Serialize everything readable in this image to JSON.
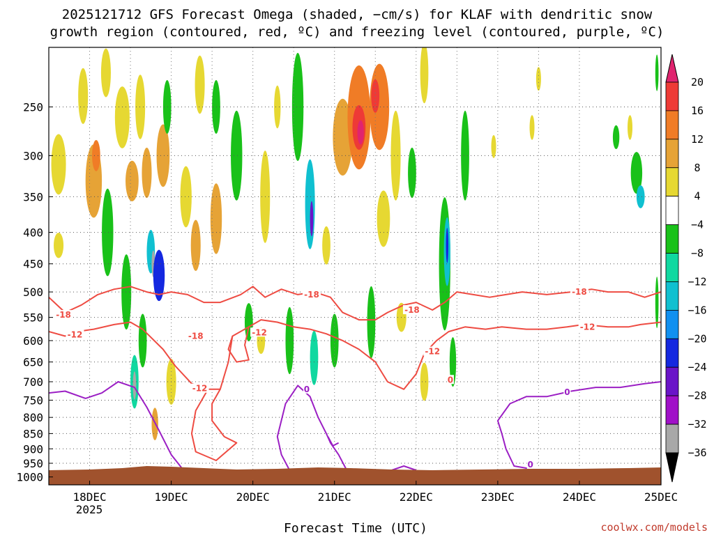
{
  "chart_data": {
    "type": "heatmap",
    "title_line1": "2025121712 GFS Forecast Omega (shaded, −cm/s) for KLAF with dendritic snow",
    "title_line2": "growth region (contoured, red, ºC) and freezing level (contoured, purple, ºC)",
    "xlabel": "Forecast Time (UTC)",
    "credit": "coolwx.com/models",
    "year_label": "2025",
    "x_ticks": [
      {
        "day": 18,
        "label": "18DEC"
      },
      {
        "day": 19,
        "label": "19DEC"
      },
      {
        "day": 20,
        "label": "20DEC"
      },
      {
        "day": 21,
        "label": "21DEC"
      },
      {
        "day": 22,
        "label": "22DEC"
      },
      {
        "day": 23,
        "label": "23DEC"
      },
      {
        "day": 24,
        "label": "24DEC"
      },
      {
        "day": 25,
        "label": "25DEC"
      }
    ],
    "x_range_days": [
      17.5,
      25.0
    ],
    "y_ticks_hpa": [
      250,
      300,
      350,
      400,
      450,
      500,
      550,
      600,
      650,
      700,
      750,
      800,
      850,
      900,
      950,
      1000
    ],
    "y_range_hpa": [
      200,
      1030
    ],
    "y_scale": "log-pressure",
    "surface_hpa": 975,
    "colorbar": {
      "ticks": [
        "20",
        "16",
        "12",
        "8",
        "4",
        "−4",
        "−8",
        "−12",
        "−16",
        "−20",
        "−24",
        "−28",
        "−32",
        "−36"
      ],
      "colors": [
        "#e0246f",
        "#ee3a36",
        "#f07c26",
        "#e6a336",
        "#e6d832",
        "#ffffff",
        "#19c119",
        "#10d8a0",
        "#10c0d0",
        "#1090f0",
        "#1428e0",
        "#6a14c8",
        "#a010c8",
        "#a8a8a8"
      ],
      "top_arrow_color": "#e0246f",
      "bottom_arrow_color": "#000000"
    },
    "omega_blobs": [
      {
        "d": 17.62,
        "p": 310,
        "dd": 0.09,
        "dp": 70,
        "c": 4
      },
      {
        "d": 17.62,
        "p": 420,
        "dd": 0.06,
        "dp": 40,
        "c": 4
      },
      {
        "d": 17.92,
        "p": 240,
        "dd": 0.06,
        "dp": 50,
        "c": 4
      },
      {
        "d": 18.05,
        "p": 330,
        "dd": 0.1,
        "dp": 90,
        "c": 3
      },
      {
        "d": 18.08,
        "p": 300,
        "dd": 0.05,
        "dp": 35,
        "c": 2
      },
      {
        "d": 18.2,
        "p": 220,
        "dd": 0.06,
        "dp": 40,
        "c": 4
      },
      {
        "d": 18.22,
        "p": 400,
        "dd": 0.07,
        "dp": 130,
        "c": 6
      },
      {
        "d": 18.4,
        "p": 260,
        "dd": 0.09,
        "dp": 60,
        "c": 4
      },
      {
        "d": 18.45,
        "p": 500,
        "dd": 0.06,
        "dp": 140,
        "c": 6
      },
      {
        "d": 18.52,
        "p": 330,
        "dd": 0.08,
        "dp": 50,
        "c": 3
      },
      {
        "d": 18.55,
        "p": 700,
        "dd": 0.05,
        "dp": 140,
        "c": 7
      },
      {
        "d": 18.55,
        "p": 710,
        "dd": 0.02,
        "dp": 75,
        "c": 13
      },
      {
        "d": 18.62,
        "p": 250,
        "dd": 0.06,
        "dp": 60,
        "c": 4
      },
      {
        "d": 18.65,
        "p": 600,
        "dd": 0.05,
        "dp": 120,
        "c": 6
      },
      {
        "d": 18.7,
        "p": 320,
        "dd": 0.06,
        "dp": 60,
        "c": 3
      },
      {
        "d": 18.75,
        "p": 430,
        "dd": 0.05,
        "dp": 70,
        "c": 8
      },
      {
        "d": 18.78,
        "p": 450,
        "dd": 0.02,
        "dp": 45,
        "c": 13
      },
      {
        "d": 18.85,
        "p": 470,
        "dd": 0.07,
        "dp": 90,
        "c": 10
      },
      {
        "d": 18.9,
        "p": 300,
        "dd": 0.08,
        "dp": 70,
        "c": 3
      },
      {
        "d": 18.8,
        "p": 820,
        "dd": 0.04,
        "dp": 100,
        "c": 3
      },
      {
        "d": 18.95,
        "p": 250,
        "dd": 0.05,
        "dp": 50,
        "c": 6
      },
      {
        "d": 19.0,
        "p": 700,
        "dd": 0.06,
        "dp": 120,
        "c": 4
      },
      {
        "d": 19.18,
        "p": 350,
        "dd": 0.07,
        "dp": 80,
        "c": 4
      },
      {
        "d": 19.3,
        "p": 420,
        "dd": 0.06,
        "dp": 80,
        "c": 3
      },
      {
        "d": 19.35,
        "p": 230,
        "dd": 0.06,
        "dp": 50,
        "c": 4
      },
      {
        "d": 19.55,
        "p": 380,
        "dd": 0.07,
        "dp": 100,
        "c": 3
      },
      {
        "d": 19.55,
        "p": 250,
        "dd": 0.05,
        "dp": 50,
        "c": 6
      },
      {
        "d": 19.8,
        "p": 300,
        "dd": 0.07,
        "dp": 100,
        "c": 6
      },
      {
        "d": 19.95,
        "p": 560,
        "dd": 0.05,
        "dp": 80,
        "c": 6
      },
      {
        "d": 20.15,
        "p": 350,
        "dd": 0.06,
        "dp": 120,
        "c": 4
      },
      {
        "d": 20.3,
        "p": 250,
        "dd": 0.04,
        "dp": 40,
        "c": 4
      },
      {
        "d": 20.45,
        "p": 600,
        "dd": 0.05,
        "dp": 150,
        "c": 6
      },
      {
        "d": 20.55,
        "p": 250,
        "dd": 0.07,
        "dp": 100,
        "c": 6
      },
      {
        "d": 20.7,
        "p": 360,
        "dd": 0.06,
        "dp": 120,
        "c": 8
      },
      {
        "d": 20.72,
        "p": 380,
        "dd": 0.02,
        "dp": 50,
        "c": 11
      },
      {
        "d": 20.75,
        "p": 640,
        "dd": 0.05,
        "dp": 130,
        "c": 7
      },
      {
        "d": 20.9,
        "p": 420,
        "dd": 0.05,
        "dp": 60,
        "c": 4
      },
      {
        "d": 21.0,
        "p": 600,
        "dd": 0.05,
        "dp": 120,
        "c": 6
      },
      {
        "d": 21.1,
        "p": 280,
        "dd": 0.12,
        "dp": 80,
        "c": 3
      },
      {
        "d": 21.3,
        "p": 260,
        "dd": 0.14,
        "dp": 100,
        "c": 2
      },
      {
        "d": 21.3,
        "p": 270,
        "dd": 0.08,
        "dp": 45,
        "c": 1
      },
      {
        "d": 21.32,
        "p": 275,
        "dd": 0.04,
        "dp": 25,
        "c": 0
      },
      {
        "d": 21.55,
        "p": 250,
        "dd": 0.12,
        "dp": 80,
        "c": 2
      },
      {
        "d": 21.5,
        "p": 240,
        "dd": 0.05,
        "dp": 30,
        "c": 1
      },
      {
        "d": 21.6,
        "p": 380,
        "dd": 0.08,
        "dp": 80,
        "c": 4
      },
      {
        "d": 21.45,
        "p": 560,
        "dd": 0.05,
        "dp": 150,
        "c": 6
      },
      {
        "d": 21.75,
        "p": 300,
        "dd": 0.06,
        "dp": 100,
        "c": 4
      },
      {
        "d": 21.82,
        "p": 550,
        "dd": 0.06,
        "dp": 60,
        "c": 4
      },
      {
        "d": 21.95,
        "p": 320,
        "dd": 0.05,
        "dp": 60,
        "c": 6
      },
      {
        "d": 22.1,
        "p": 220,
        "dd": 0.05,
        "dp": 50,
        "c": 4
      },
      {
        "d": 22.1,
        "p": 700,
        "dd": 0.05,
        "dp": 100,
        "c": 4
      },
      {
        "d": 22.35,
        "p": 450,
        "dd": 0.07,
        "dp": 220,
        "c": 6
      },
      {
        "d": 22.38,
        "p": 430,
        "dd": 0.04,
        "dp": 110,
        "c": 8
      },
      {
        "d": 22.38,
        "p": 420,
        "dd": 0.015,
        "dp": 55,
        "c": 10
      },
      {
        "d": 22.45,
        "p": 650,
        "dd": 0.04,
        "dp": 120,
        "c": 6
      },
      {
        "d": 22.6,
        "p": 300,
        "dd": 0.05,
        "dp": 100,
        "c": 6
      },
      {
        "d": 22.95,
        "p": 290,
        "dd": 0.03,
        "dp": 25,
        "c": 4
      },
      {
        "d": 23.5,
        "p": 225,
        "dd": 0.03,
        "dp": 20,
        "c": 4
      },
      {
        "d": 23.42,
        "p": 270,
        "dd": 0.03,
        "dp": 25,
        "c": 4
      },
      {
        "d": 24.45,
        "p": 280,
        "dd": 0.04,
        "dp": 25,
        "c": 6
      },
      {
        "d": 24.62,
        "p": 270,
        "dd": 0.03,
        "dp": 25,
        "c": 4
      },
      {
        "d": 24.7,
        "p": 320,
        "dd": 0.07,
        "dp": 50,
        "c": 6
      },
      {
        "d": 24.75,
        "p": 350,
        "dd": 0.05,
        "dp": 30,
        "c": 8
      },
      {
        "d": 24.95,
        "p": 220,
        "dd": 0.02,
        "dp": 30,
        "c": 6
      },
      {
        "d": 24.95,
        "p": 520,
        "dd": 0.02,
        "dp": 100,
        "c": 6
      },
      {
        "d": 20.1,
        "p": 600,
        "dd": 0.05,
        "dp": 60,
        "c": 4
      }
    ],
    "contours": [
      {
        "name": "dgz-minus18",
        "color": "#ee4b42",
        "width": 2,
        "points": [
          [
            17.5,
            510
          ],
          [
            17.7,
            540
          ],
          [
            17.9,
            525
          ],
          [
            18.1,
            505
          ],
          [
            18.3,
            495
          ],
          [
            18.5,
            490
          ],
          [
            18.7,
            500
          ],
          [
            18.85,
            505
          ],
          [
            19.0,
            500
          ],
          [
            19.2,
            505
          ],
          [
            19.4,
            520
          ],
          [
            19.6,
            520
          ],
          [
            19.85,
            505
          ],
          [
            20.0,
            490
          ],
          [
            20.15,
            510
          ],
          [
            20.35,
            495
          ],
          [
            20.55,
            505
          ],
          [
            20.75,
            500
          ],
          [
            20.95,
            510
          ],
          [
            21.1,
            540
          ],
          [
            21.3,
            555
          ],
          [
            21.5,
            555
          ],
          [
            21.65,
            540
          ],
          [
            21.85,
            525
          ],
          [
            22.0,
            520
          ],
          [
            22.2,
            535
          ],
          [
            22.35,
            520
          ],
          [
            22.5,
            500
          ],
          [
            22.7,
            505
          ],
          [
            22.9,
            510
          ],
          [
            23.1,
            505
          ],
          [
            23.3,
            500
          ],
          [
            23.6,
            505
          ],
          [
            23.9,
            500
          ],
          [
            24.15,
            495
          ],
          [
            24.35,
            500
          ],
          [
            24.6,
            500
          ],
          [
            24.8,
            510
          ],
          [
            25.0,
            500
          ]
        ]
      },
      {
        "name": "dgz-minus12",
        "color": "#ee4b42",
        "width": 2,
        "points": [
          [
            17.5,
            580
          ],
          [
            17.7,
            590
          ],
          [
            17.85,
            580
          ],
          [
            18.05,
            575
          ],
          [
            18.3,
            565
          ],
          [
            18.5,
            560
          ],
          [
            18.65,
            575
          ],
          [
            18.9,
            620
          ],
          [
            19.05,
            660
          ],
          [
            19.25,
            705
          ],
          [
            19.45,
            720
          ],
          [
            19.6,
            720
          ],
          [
            19.7,
            650
          ],
          [
            19.75,
            590
          ],
          [
            19.95,
            570
          ],
          [
            20.1,
            555
          ],
          [
            20.3,
            560
          ],
          [
            20.5,
            570
          ],
          [
            20.7,
            575
          ],
          [
            20.9,
            585
          ],
          [
            21.1,
            600
          ],
          [
            21.3,
            620
          ],
          [
            21.5,
            650
          ],
          [
            21.65,
            700
          ],
          [
            21.85,
            720
          ],
          [
            22.0,
            680
          ],
          [
            22.1,
            630
          ],
          [
            22.25,
            600
          ],
          [
            22.4,
            580
          ],
          [
            22.6,
            570
          ],
          [
            22.85,
            575
          ],
          [
            23.05,
            570
          ],
          [
            23.35,
            575
          ],
          [
            23.6,
            575
          ],
          [
            23.85,
            570
          ],
          [
            24.05,
            565
          ],
          [
            24.35,
            570
          ],
          [
            24.6,
            570
          ],
          [
            24.75,
            565
          ],
          [
            25.0,
            560
          ]
        ]
      },
      {
        "name": "dgz-loop-a",
        "color": "#ee4b42",
        "width": 2,
        "points": [
          [
            19.45,
            720
          ],
          [
            19.3,
            780
          ],
          [
            19.25,
            850
          ],
          [
            19.3,
            910
          ],
          [
            19.55,
            940
          ],
          [
            19.8,
            880
          ],
          [
            19.65,
            860
          ],
          [
            19.5,
            810
          ],
          [
            19.5,
            760
          ],
          [
            19.6,
            720
          ]
        ]
      },
      {
        "name": "dgz-loop-b",
        "color": "#ee4b42",
        "width": 2,
        "points": [
          [
            19.75,
            590
          ],
          [
            19.7,
            620
          ],
          [
            19.8,
            650
          ],
          [
            19.95,
            645
          ],
          [
            19.9,
            610
          ],
          [
            19.95,
            570
          ]
        ]
      },
      {
        "name": "freezing-0",
        "color": "#9b1fc4",
        "width": 2,
        "points": [
          [
            17.5,
            730
          ],
          [
            17.7,
            725
          ],
          [
            17.95,
            745
          ],
          [
            18.15,
            730
          ],
          [
            18.35,
            700
          ],
          [
            18.55,
            715
          ],
          [
            18.7,
            770
          ],
          [
            18.85,
            840
          ],
          [
            19.0,
            920
          ],
          [
            19.15,
            975
          ]
        ]
      },
      {
        "name": "freezing-0-b",
        "color": "#9b1fc4",
        "width": 2,
        "points": [
          [
            20.45,
            975
          ],
          [
            20.35,
            920
          ],
          [
            20.3,
            860
          ],
          [
            20.4,
            760
          ],
          [
            20.55,
            710
          ],
          [
            20.7,
            740
          ],
          [
            20.8,
            800
          ],
          [
            20.9,
            850
          ],
          [
            20.95,
            880
          ],
          [
            21.05,
            920
          ],
          [
            21.15,
            975
          ]
        ]
      },
      {
        "name": "freezing-0-c",
        "color": "#9b1fc4",
        "width": 2,
        "points": [
          [
            20.92,
            860
          ],
          [
            20.98,
            890
          ],
          [
            21.05,
            880
          ]
        ]
      },
      {
        "name": "freezing-0-d",
        "color": "#9b1fc4",
        "width": 2,
        "points": [
          [
            21.7,
            975
          ],
          [
            21.85,
            960
          ],
          [
            22.0,
            975
          ]
        ]
      },
      {
        "name": "freezing-0-e",
        "color": "#9b1fc4",
        "width": 2,
        "points": [
          [
            23.5,
            975
          ],
          [
            23.2,
            960
          ],
          [
            23.1,
            900
          ],
          [
            23.05,
            850
          ],
          [
            23.0,
            810
          ],
          [
            23.15,
            760
          ],
          [
            23.35,
            740
          ],
          [
            23.6,
            740
          ],
          [
            23.9,
            725
          ],
          [
            24.2,
            715
          ],
          [
            24.5,
            715
          ],
          [
            24.8,
            705
          ],
          [
            25.0,
            700
          ]
        ]
      }
    ],
    "contour_labels": [
      {
        "text": "-18",
        "d": 17.68,
        "p": 545,
        "color": "#ee4b42"
      },
      {
        "text": "-12",
        "d": 17.82,
        "p": 587,
        "color": "#ee4b42"
      },
      {
        "text": "-18",
        "d": 19.3,
        "p": 590,
        "color": "#ee4b42"
      },
      {
        "text": "-12",
        "d": 19.35,
        "p": 718,
        "color": "#ee4b42"
      },
      {
        "text": "-12",
        "d": 20.08,
        "p": 582,
        "color": "#ee4b42"
      },
      {
        "text": "-18",
        "d": 20.72,
        "p": 505,
        "color": "#ee4b42"
      },
      {
        "text": "-18",
        "d": 21.95,
        "p": 535,
        "color": "#ee4b42"
      },
      {
        "text": "-12",
        "d": 22.2,
        "p": 625,
        "color": "#ee4b42"
      },
      {
        "text": "-18",
        "d": 24.0,
        "p": 500,
        "color": "#ee4b42"
      },
      {
        "text": "-12",
        "d": 24.1,
        "p": 570,
        "color": "#ee4b42"
      },
      {
        "text": "0",
        "d": 20.66,
        "p": 720,
        "color": "#9b1fc4"
      },
      {
        "text": "0",
        "d": 22.42,
        "p": 695,
        "color": "#ee4b42"
      },
      {
        "text": "0",
        "d": 23.85,
        "p": 728,
        "color": "#9b1fc4"
      },
      {
        "text": "0",
        "d": 23.4,
        "p": 955,
        "color": "#9b1fc4"
      }
    ]
  }
}
